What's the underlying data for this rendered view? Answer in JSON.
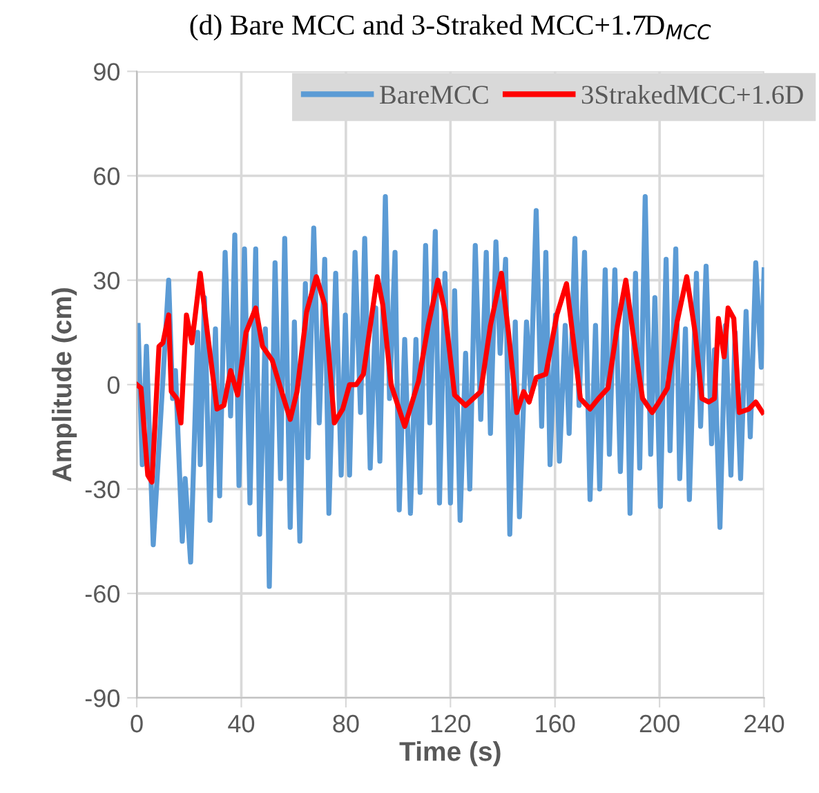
{
  "chart_data": {
    "type": "line",
    "title": "(d) Bare MCC and 3-Straked MCC+1.7D$_{MCC}$",
    "xlabel": "Time (s)",
    "ylabel": "Amplitude (cm)",
    "xlim": [
      0,
      240
    ],
    "xticks": [
      0,
      40,
      80,
      120,
      160,
      200,
      240
    ],
    "ylim": [
      -90,
      90
    ],
    "yticks": [
      -90,
      -60,
      -30,
      0,
      30,
      60,
      90
    ],
    "grid": true,
    "legend": "top right",
    "marker": "none",
    "line_style": "solid",
    "series": [
      {
        "name": "BareMCC",
        "color": "#5b9bd5",
        "x": [
          0.5,
          2.1,
          3.7,
          6.3,
          12.2,
          13.7,
          14.8,
          17.4,
          18.5,
          20.6,
          23.3,
          24.3,
          25.9,
          28.0,
          30.1,
          31.7,
          33.8,
          35.9,
          37.5,
          39.1,
          41.2,
          43.3,
          45.5,
          47.0,
          49.2,
          50.7,
          52.9,
          55.0,
          56.6,
          58.7,
          60.3,
          62.4,
          64.5,
          65.5,
          67.7,
          69.8,
          71.9,
          73.5,
          76.1,
          78.2,
          79.8,
          81.4,
          83.5,
          85.6,
          87.2,
          89.3,
          91.4,
          93.0,
          95.1,
          96.7,
          98.8,
          100.4,
          102.5,
          104.7,
          106.8,
          108.4,
          110.5,
          112.1,
          114.2,
          115.8,
          117.9,
          120.0,
          121.6,
          123.7,
          125.8,
          127.4,
          129.5,
          131.6,
          133.7,
          135.3,
          137.4,
          139.0,
          141.1,
          142.7,
          144.8,
          146.4,
          149.1,
          150.7,
          152.8,
          154.9,
          156.5,
          158.1,
          160.2,
          161.7,
          163.9,
          165.4,
          167.6,
          169.2,
          171.3,
          173.4,
          175.5,
          177.1,
          179.2,
          180.8,
          182.9,
          185.0,
          187.1,
          188.7,
          190.8,
          192.4,
          194.5,
          196.6,
          198.2,
          200.3,
          202.5,
          204.0,
          206.2,
          207.7,
          209.9,
          211.4,
          214.1,
          215.7,
          217.8,
          219.9,
          221.0,
          223.1,
          225.2,
          227.3,
          228.9,
          231.0,
          233.1,
          234.7,
          236.8,
          238.9,
          240.0
        ],
        "values": [
          17,
          -23,
          11,
          -46,
          30,
          -4,
          4,
          -45,
          -27,
          -51,
          15,
          -23,
          25,
          -39,
          16,
          -32,
          38,
          -9,
          43,
          -29,
          39,
          -34,
          39,
          -43,
          16,
          -58,
          35,
          -27,
          42,
          -41,
          18,
          -45,
          29,
          -21,
          45,
          -11,
          36,
          -37,
          32,
          -26,
          20,
          -26,
          38,
          -8,
          42,
          -24,
          22,
          -22,
          54,
          -4,
          38,
          -36,
          13,
          -37,
          13,
          -31,
          40,
          -11,
          44,
          -34,
          32,
          -34,
          27,
          -39,
          9,
          -30,
          40,
          -10,
          38,
          -14,
          41,
          9,
          36,
          -43,
          18,
          -38,
          18,
          -2,
          50,
          -12,
          38,
          -23,
          20,
          -22,
          17,
          -14,
          42,
          -6,
          38,
          -33,
          17,
          -30,
          33,
          -20,
          33,
          -25,
          26,
          -37,
          32,
          -24,
          54,
          -20,
          25,
          -35,
          36,
          -19,
          39,
          -27,
          16,
          -33,
          32,
          -12,
          34,
          -17,
          10,
          -41,
          17,
          -26,
          15,
          -27,
          21,
          -15,
          35,
          5,
          33
        ]
      },
      {
        "name": "3StrakedMCC+1.6D",
        "color": "#ff0000",
        "x": [
          0,
          1.6,
          4.2,
          5.8,
          8.5,
          10.0,
          12.2,
          13.2,
          15.3,
          16.9,
          19.0,
          21.1,
          24.3,
          27.0,
          30.7,
          33.3,
          35.9,
          38.6,
          41.8,
          45.5,
          48.1,
          51.8,
          55.0,
          58.7,
          61.3,
          65.0,
          68.7,
          71.9,
          75.6,
          78.8,
          81.4,
          84.0,
          86.7,
          92.0,
          94.1,
          97.3,
          102.5,
          107.8,
          111.5,
          115.2,
          117.9,
          121.6,
          125.8,
          131.6,
          135.3,
          139.5,
          142.2,
          145.4,
          148.0,
          150.1,
          152.8,
          156.5,
          160.7,
          164.4,
          169.7,
          173.4,
          176.6,
          180.3,
          183.9,
          187.1,
          189.8,
          193.5,
          197.2,
          199.8,
          203.0,
          206.7,
          210.4,
          213.6,
          216.2,
          218.8,
          221.0,
          222.5,
          224.7,
          226.2,
          228.4,
          230.5,
          234.2,
          236.8,
          239.4
        ],
        "values": [
          0,
          -1,
          -26,
          -28,
          11,
          12,
          20,
          -2,
          -4,
          -11,
          20,
          12,
          32,
          15,
          -7,
          -6,
          4,
          -3,
          15,
          22,
          11,
          7,
          -1,
          -10,
          -2,
          21,
          31,
          23,
          -11,
          -7,
          0,
          0,
          3,
          31,
          23,
          0,
          -12,
          1,
          17,
          30,
          21,
          -3,
          -6,
          -2,
          17,
          32,
          15,
          -8,
          -2,
          -5,
          2,
          3,
          20,
          29,
          -4,
          -7,
          -4,
          -1,
          17,
          30,
          15,
          -4,
          -8,
          -5,
          -1,
          18,
          31,
          15,
          -4,
          -5,
          -4,
          19,
          8,
          22,
          19,
          -8,
          -7,
          -5,
          -8
        ]
      }
    ]
  }
}
